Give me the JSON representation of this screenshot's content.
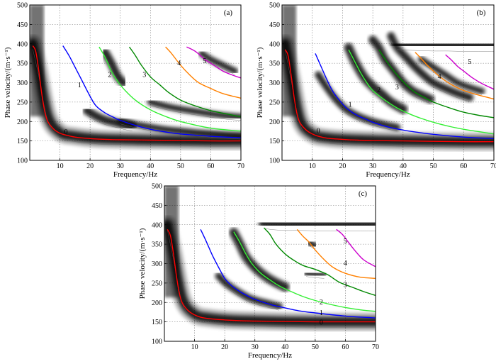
{
  "figure": {
    "description_type": "dispersion-energy-images",
    "curve_colors": {
      "0": "#ff0000",
      "1": "#0000ff",
      "2": "#33ee33",
      "3": "#008800",
      "4": "#ff8000",
      "5": "#cc00cc"
    },
    "energy_color": "#000000"
  },
  "chart_data": [
    {
      "type": "line",
      "panel_label": "(a)",
      "xlabel": "Frequency/Hz",
      "ylabel": "Phase velocity/(m·s⁻¹)",
      "xlim": [
        0,
        70
      ],
      "ylim": [
        100,
        500
      ],
      "xticks": [
        "10",
        "20",
        "30",
        "40",
        "50",
        "60",
        "70"
      ],
      "yticks": [
        "100",
        "150",
        "200",
        "250",
        "300",
        "350",
        "400",
        "450",
        "500"
      ],
      "grid": true,
      "series": [
        {
          "name": "0",
          "label_at": [
            12,
            168
          ],
          "f": [
            1,
            2,
            3,
            4,
            5,
            6,
            8,
            10,
            12,
            15,
            20,
            25,
            30,
            40,
            50,
            60,
            70
          ],
          "v": [
            395,
            380,
            330,
            270,
            225,
            200,
            180,
            170,
            165,
            160,
            156,
            154,
            153,
            152,
            151,
            150,
            150
          ]
        },
        {
          "name": "1",
          "label_at": [
            16.5,
            288
          ],
          "f": [
            11,
            13,
            15,
            17,
            20,
            22,
            25,
            28,
            30,
            35,
            40,
            45,
            50,
            60,
            70
          ],
          "v": [
            395,
            370,
            340,
            310,
            265,
            240,
            222,
            210,
            203,
            190,
            180,
            173,
            168,
            162,
            158
          ]
        },
        {
          "name": "2",
          "label_at": [
            26.5,
            315
          ],
          "f": [
            23,
            25,
            27,
            29,
            31,
            35,
            40,
            45,
            50,
            60,
            70
          ],
          "v": [
            392,
            365,
            330,
            305,
            285,
            255,
            230,
            213,
            200,
            183,
            175
          ]
        },
        {
          "name": "3",
          "label_at": [
            38,
            315
          ],
          "f": [
            33,
            35,
            37,
            40,
            43,
            46,
            50,
            55,
            60,
            65,
            70
          ],
          "v": [
            392,
            370,
            345,
            315,
            295,
            275,
            255,
            240,
            228,
            220,
            212
          ]
        },
        {
          "name": "4",
          "label_at": [
            49.5,
            345
          ],
          "f": [
            45,
            47,
            50,
            53,
            56,
            60,
            64,
            70
          ],
          "v": [
            392,
            375,
            345,
            320,
            300,
            285,
            272,
            260
          ]
        },
        {
          "name": "5",
          "label_at": [
            58,
            350
          ],
          "f": [
            52,
            55,
            58,
            61,
            64,
            67,
            70
          ],
          "v": [
            392,
            380,
            360,
            345,
            330,
            320,
            312
          ]
        }
      ],
      "energy_regions": [
        {
          "f": [
            1,
            3,
            6,
            10,
            15,
            22,
            30,
            40,
            50,
            60,
            70
          ],
          "v": [
            400,
            330,
            215,
            172,
            162,
            156,
            154,
            152,
            151,
            150,
            150
          ],
          "width": 11
        },
        {
          "f": [
            19,
            22,
            25,
            28,
            31,
            34
          ],
          "v": [
            228,
            214,
            204,
            198,
            192,
            187
          ],
          "width": 9
        },
        {
          "f": [
            25,
            27,
            29,
            31
          ],
          "v": [
            378,
            350,
            318,
            300
          ],
          "width": 9
        },
        {
          "f": [
            40,
            45,
            50,
            55,
            60,
            65,
            70
          ],
          "v": [
            250,
            240,
            232,
            226,
            220,
            215,
            212
          ],
          "width": 6
        },
        {
          "f": [
            30,
            35,
            40,
            45,
            50,
            55,
            60,
            65,
            70
          ],
          "v": [
            203,
            193,
            186,
            180,
            176,
            172,
            169,
            166,
            164
          ],
          "width": 6
        },
        {
          "f": [
            57,
            60,
            64,
            68
          ],
          "v": [
            375,
            360,
            345,
            330
          ],
          "width": 6
        }
      ]
    },
    {
      "type": "line",
      "panel_label": "(b)",
      "xlabel": "Frequency/Hz",
      "ylabel": "Phase velocity/(m·s⁻¹)",
      "xlim": [
        0,
        70
      ],
      "ylim": [
        100,
        500
      ],
      "xticks": [
        "10",
        "20",
        "30",
        "40",
        "50",
        "60",
        "70"
      ],
      "yticks": [
        "100",
        "150",
        "200",
        "250",
        "300",
        "350",
        "400",
        "450",
        "500"
      ],
      "grid": true,
      "series": [
        {
          "name": "0",
          "label_at": [
            12,
            170
          ],
          "f": [
            1,
            2,
            3,
            4,
            5,
            6,
            8,
            10,
            12,
            15,
            20,
            25,
            30,
            40,
            50,
            60,
            70
          ],
          "v": [
            385,
            370,
            320,
            262,
            218,
            196,
            178,
            168,
            162,
            157,
            154,
            152,
            151,
            150,
            149,
            148,
            148
          ]
        },
        {
          "name": "1",
          "label_at": [
            22.5,
            238
          ],
          "f": [
            11,
            13,
            15,
            17,
            20,
            22,
            25,
            28,
            30,
            35,
            40,
            45,
            50,
            60,
            70
          ],
          "v": [
            375,
            340,
            305,
            275,
            245,
            230,
            215,
            205,
            198,
            186,
            178,
            172,
            167,
            160,
            156
          ]
        },
        {
          "name": "2",
          "label_at": [
            32,
            275
          ],
          "f": [
            22,
            24,
            26,
            28,
            30,
            34,
            38,
            42,
            46,
            50,
            55,
            60,
            65,
            70
          ],
          "v": [
            385,
            355,
            325,
            300,
            280,
            255,
            235,
            220,
            208,
            198,
            188,
            180,
            174,
            168
          ]
        },
        {
          "name": "3",
          "label_at": [
            38,
            283
          ],
          "f": [
            32,
            35,
            38,
            41,
            44,
            47,
            50,
            55,
            60,
            65,
            70
          ],
          "v": [
            385,
            350,
            320,
            295,
            275,
            262,
            250,
            236,
            224,
            216,
            210
          ]
        },
        {
          "name": "4",
          "label_at": [
            52,
            310
          ],
          "f": [
            44,
            46,
            48,
            50,
            53,
            56,
            60,
            64,
            70
          ],
          "v": [
            378,
            362,
            345,
            330,
            310,
            295,
            280,
            270,
            258
          ]
        },
        {
          "name": "5",
          "label_at": [
            62,
            348
          ],
          "f": [
            54,
            56,
            58,
            60,
            63,
            66,
            70
          ],
          "v": [
            372,
            358,
            342,
            330,
            312,
            298,
            283
          ]
        }
      ],
      "energy_regions": [
        {
          "f": [
            1,
            3,
            6,
            10,
            15,
            22,
            30,
            40,
            50,
            60,
            70
          ],
          "v": [
            400,
            320,
            205,
            168,
            158,
            154,
            152,
            150,
            149,
            148,
            148
          ],
          "width": 11
        },
        {
          "f": [
            12,
            15,
            18,
            21,
            24,
            27,
            30,
            34,
            38
          ],
          "v": [
            320,
            285,
            255,
            232,
            218,
            208,
            200,
            192,
            185
          ],
          "width": 7
        },
        {
          "f": [
            22,
            24,
            27,
            30,
            33,
            36,
            40
          ],
          "v": [
            390,
            355,
            315,
            290,
            270,
            250,
            232
          ],
          "width": 10
        },
        {
          "f": [
            30,
            32,
            34,
            37,
            40,
            43,
            46,
            49
          ],
          "v": [
            410,
            390,
            360,
            330,
            300,
            280,
            268,
            258
          ],
          "width": 9
        },
        {
          "f": [
            36,
            38,
            41,
            44,
            47,
            50,
            54,
            58,
            62
          ],
          "v": [
            420,
            390,
            365,
            340,
            318,
            300,
            285,
            272,
            262
          ],
          "width": 8
        },
        {
          "f": [
            38,
            42,
            46,
            50,
            55,
            60,
            65,
            70
          ],
          "v": [
            400,
            398,
            397,
            396,
            396,
            395,
            395,
            395
          ],
          "width": 12
        },
        {
          "f": [
            46,
            50,
            54,
            58,
            62,
            66
          ],
          "v": [
            360,
            340,
            320,
            300,
            288,
            278
          ],
          "width": 6
        }
      ]
    },
    {
      "type": "line",
      "panel_label": "(c)",
      "xlabel": "Frequency/Hz",
      "ylabel": "Phase velocity/(m·s⁻¹)",
      "xlim": [
        0,
        70
      ],
      "ylim": [
        100,
        500
      ],
      "xticks": [
        "10",
        "20",
        "30",
        "40",
        "50",
        "60",
        "70"
      ],
      "yticks": [
        "100",
        "150",
        "200",
        "250",
        "300",
        "350",
        "400",
        "450",
        "500"
      ],
      "grid": true,
      "series": [
        {
          "name": "0",
          "label_at": [
            52,
            143
          ],
          "f": [
            1,
            2,
            3,
            4,
            5,
            6,
            8,
            10,
            12,
            15,
            20,
            25,
            30,
            40,
            50,
            60,
            70
          ],
          "v": [
            388,
            372,
            325,
            268,
            222,
            198,
            178,
            168,
            162,
            158,
            155,
            153,
            152,
            151,
            150,
            150,
            150
          ]
        },
        {
          "name": "1",
          "label_at": [
            52,
            168
          ],
          "f": [
            12,
            14,
            16,
            18,
            20,
            22,
            25,
            28,
            30,
            35,
            40,
            45,
            50,
            60,
            70
          ],
          "v": [
            388,
            355,
            320,
            290,
            262,
            245,
            228,
            215,
            208,
            195,
            186,
            178,
            173,
            165,
            160
          ]
        },
        {
          "name": "2",
          "label_at": [
            52,
            195
          ],
          "f": [
            23,
            25,
            27,
            29,
            32,
            35,
            38,
            42,
            46,
            50,
            55,
            60,
            65,
            70
          ],
          "v": [
            382,
            355,
            325,
            300,
            275,
            258,
            243,
            228,
            215,
            205,
            195,
            187,
            181,
            177
          ]
        },
        {
          "name": "3",
          "label_at": [
            60,
            240
          ],
          "f": [
            33,
            35,
            37,
            40,
            43,
            46,
            50,
            54,
            58,
            62,
            66,
            70
          ],
          "v": [
            392,
            375,
            350,
            325,
            308,
            295,
            285,
            272,
            252,
            240,
            228,
            218
          ]
        },
        {
          "name": "4",
          "label_at": [
            60,
            295
          ],
          "f": [
            44,
            46,
            48,
            50,
            53,
            56,
            60,
            65,
            70
          ],
          "v": [
            388,
            370,
            355,
            335,
            310,
            290,
            275,
            265,
            262
          ]
        },
        {
          "name": "5",
          "label_at": [
            60,
            352
          ],
          "f": [
            57,
            59,
            61,
            63,
            66,
            70
          ],
          "v": [
            388,
            375,
            355,
            335,
            310,
            292
          ]
        }
      ],
      "energy_regions": [
        {
          "f": [
            1,
            3,
            6,
            10,
            15,
            22,
            30,
            40,
            50,
            60,
            70
          ],
          "v": [
            400,
            325,
            210,
            170,
            160,
            155,
            153,
            151,
            150,
            150,
            150
          ],
          "width": 11
        },
        {
          "f": [
            18,
            20,
            22,
            25,
            28,
            31,
            34,
            38
          ],
          "v": [
            268,
            252,
            240,
            225,
            212,
            204,
            198,
            190
          ],
          "width": 7
        },
        {
          "f": [
            23,
            25,
            27,
            30,
            33,
            36,
            40
          ],
          "v": [
            380,
            350,
            318,
            290,
            270,
            255,
            240
          ],
          "width": 10
        },
        {
          "f": [
            33,
            36,
            40,
            45,
            50,
            55,
            60,
            65,
            70
          ],
          "v": [
            405,
            402,
            400,
            400,
            399,
            399,
            399,
            399,
            399
          ],
          "width": 12
        },
        {
          "f": [
            48,
            50
          ],
          "v": [
            355,
            345
          ],
          "width": 6
        },
        {
          "f": [
            47,
            50,
            53
          ],
          "v": [
            275,
            272,
            270
          ],
          "width": 5
        }
      ]
    }
  ]
}
